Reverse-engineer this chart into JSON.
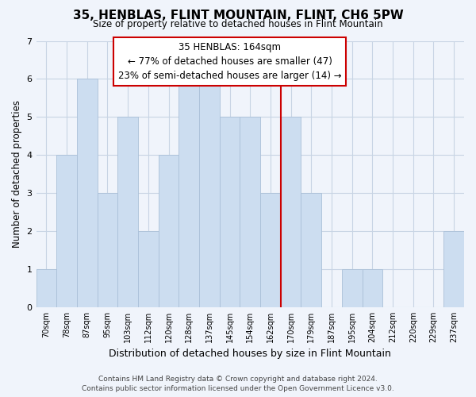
{
  "title": "35, HENBLAS, FLINT MOUNTAIN, FLINT, CH6 5PW",
  "subtitle": "Size of property relative to detached houses in Flint Mountain",
  "xlabel": "Distribution of detached houses by size in Flint Mountain",
  "ylabel": "Number of detached properties",
  "bins": [
    "70sqm",
    "78sqm",
    "87sqm",
    "95sqm",
    "103sqm",
    "112sqm",
    "120sqm",
    "128sqm",
    "137sqm",
    "145sqm",
    "154sqm",
    "162sqm",
    "170sqm",
    "179sqm",
    "187sqm",
    "195sqm",
    "204sqm",
    "212sqm",
    "220sqm",
    "229sqm",
    "237sqm"
  ],
  "values": [
    1,
    4,
    6,
    3,
    5,
    2,
    4,
    6,
    6,
    5,
    5,
    3,
    5,
    3,
    0,
    1,
    1,
    0,
    0,
    0,
    2
  ],
  "bar_color": "#ccddf0",
  "bar_edge_color": "#aac0d8",
  "grid_color": "#c8d4e4",
  "subject_line_color": "#cc0000",
  "subject_line_idx": 11,
  "annotation_title": "35 HENBLAS: 164sqm",
  "annotation_line1": "← 77% of detached houses are smaller (47)",
  "annotation_line2": "23% of semi-detached houses are larger (14) →",
  "annotation_box_facecolor": "#ffffff",
  "annotation_box_edgecolor": "#cc0000",
  "ylim": [
    0,
    7
  ],
  "yticks": [
    0,
    1,
    2,
    3,
    4,
    5,
    6,
    7
  ],
  "footer_line1": "Contains HM Land Registry data © Crown copyright and database right 2024.",
  "footer_line2": "Contains public sector information licensed under the Open Government Licence v3.0.",
  "bg_color": "#f0f4fb",
  "title_fontsize": 11,
  "subtitle_fontsize": 8.5,
  "ylabel_fontsize": 8.5,
  "xlabel_fontsize": 9,
  "tick_fontsize": 7,
  "ann_fontsize": 8.5,
  "footer_fontsize": 6.5
}
